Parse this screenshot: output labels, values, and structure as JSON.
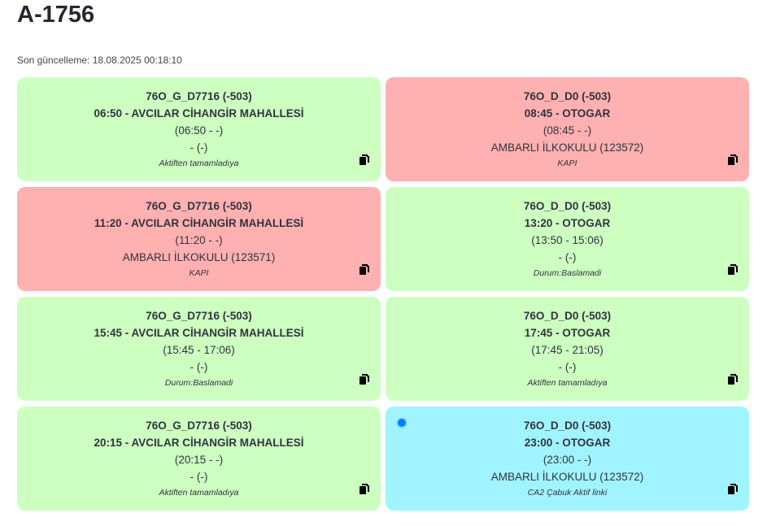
{
  "header": {
    "title": "A-1756",
    "updated": "Son güncelleme: 18.08.2025 00:18:10"
  },
  "colors": {
    "green": "#ccffc0",
    "red": "#ffb0b0",
    "cyan": "#a0f4ff",
    "dot": "#0a7cff"
  },
  "cards": [
    {
      "status": "green",
      "route": "76O_G_D7716 (-503)",
      "trip": "06:50 - AVCILAR CİHANGİR MAHALLESİ",
      "times": "(06:50 - -)",
      "stop": "- (-)",
      "note": "Aktiften tamamladıya",
      "icon": "copy-icon"
    },
    {
      "status": "red",
      "route": "76O_D_D0 (-503)",
      "trip": "08:45 - OTOGAR",
      "times": "(08:45 - -)",
      "stop": "AMBARLI İLKOKULU (123572)",
      "note": "KAPI",
      "icon": "copy-icon"
    },
    {
      "status": "red",
      "route": "76O_G_D7716 (-503)",
      "trip": "11:20 - AVCILAR CİHANGİR MAHALLESİ",
      "times": "(11:20 - -)",
      "stop": "AMBARLI İLKOKULU (123571)",
      "note": "KAPI",
      "icon": "copy-icon"
    },
    {
      "status": "green",
      "route": "76O_D_D0 (-503)",
      "trip": "13:20 - OTOGAR",
      "times": "(13:50 - 15:06)",
      "stop": "- (-)",
      "note": "Durum:Baslamadi",
      "icon": "copy-icon"
    },
    {
      "status": "green",
      "route": "76O_G_D7716 (-503)",
      "trip": "15:45 - AVCILAR CİHANGİR MAHALLESİ",
      "times": "(15:45 - 17:06)",
      "stop": "- (-)",
      "note": "Durum:Baslamadi",
      "icon": "copy-icon"
    },
    {
      "status": "green",
      "route": "76O_D_D0 (-503)",
      "trip": "17:45 - OTOGAR",
      "times": "(17:45 - 21:05)",
      "stop": "- (-)",
      "note": "Aktiften tamamladıya",
      "icon": "copy-icon"
    },
    {
      "status": "green",
      "route": "76O_G_D7716 (-503)",
      "trip": "20:15 - AVCILAR CİHANGİR MAHALLESİ",
      "times": "(20:15 - -)",
      "stop": "- (-)",
      "note": "Aktiften tamamladıya",
      "icon": "copy-icon"
    },
    {
      "status": "cyan",
      "active": true,
      "route": "76O_D_D0 (-503)",
      "trip": "23:00 - OTOGAR",
      "times": "(23:00 - -)",
      "stop": "AMBARLI İLKOKULU (123572)",
      "note": "CA2 Çabuk Aktif linki",
      "icon": "copy-icon"
    }
  ]
}
